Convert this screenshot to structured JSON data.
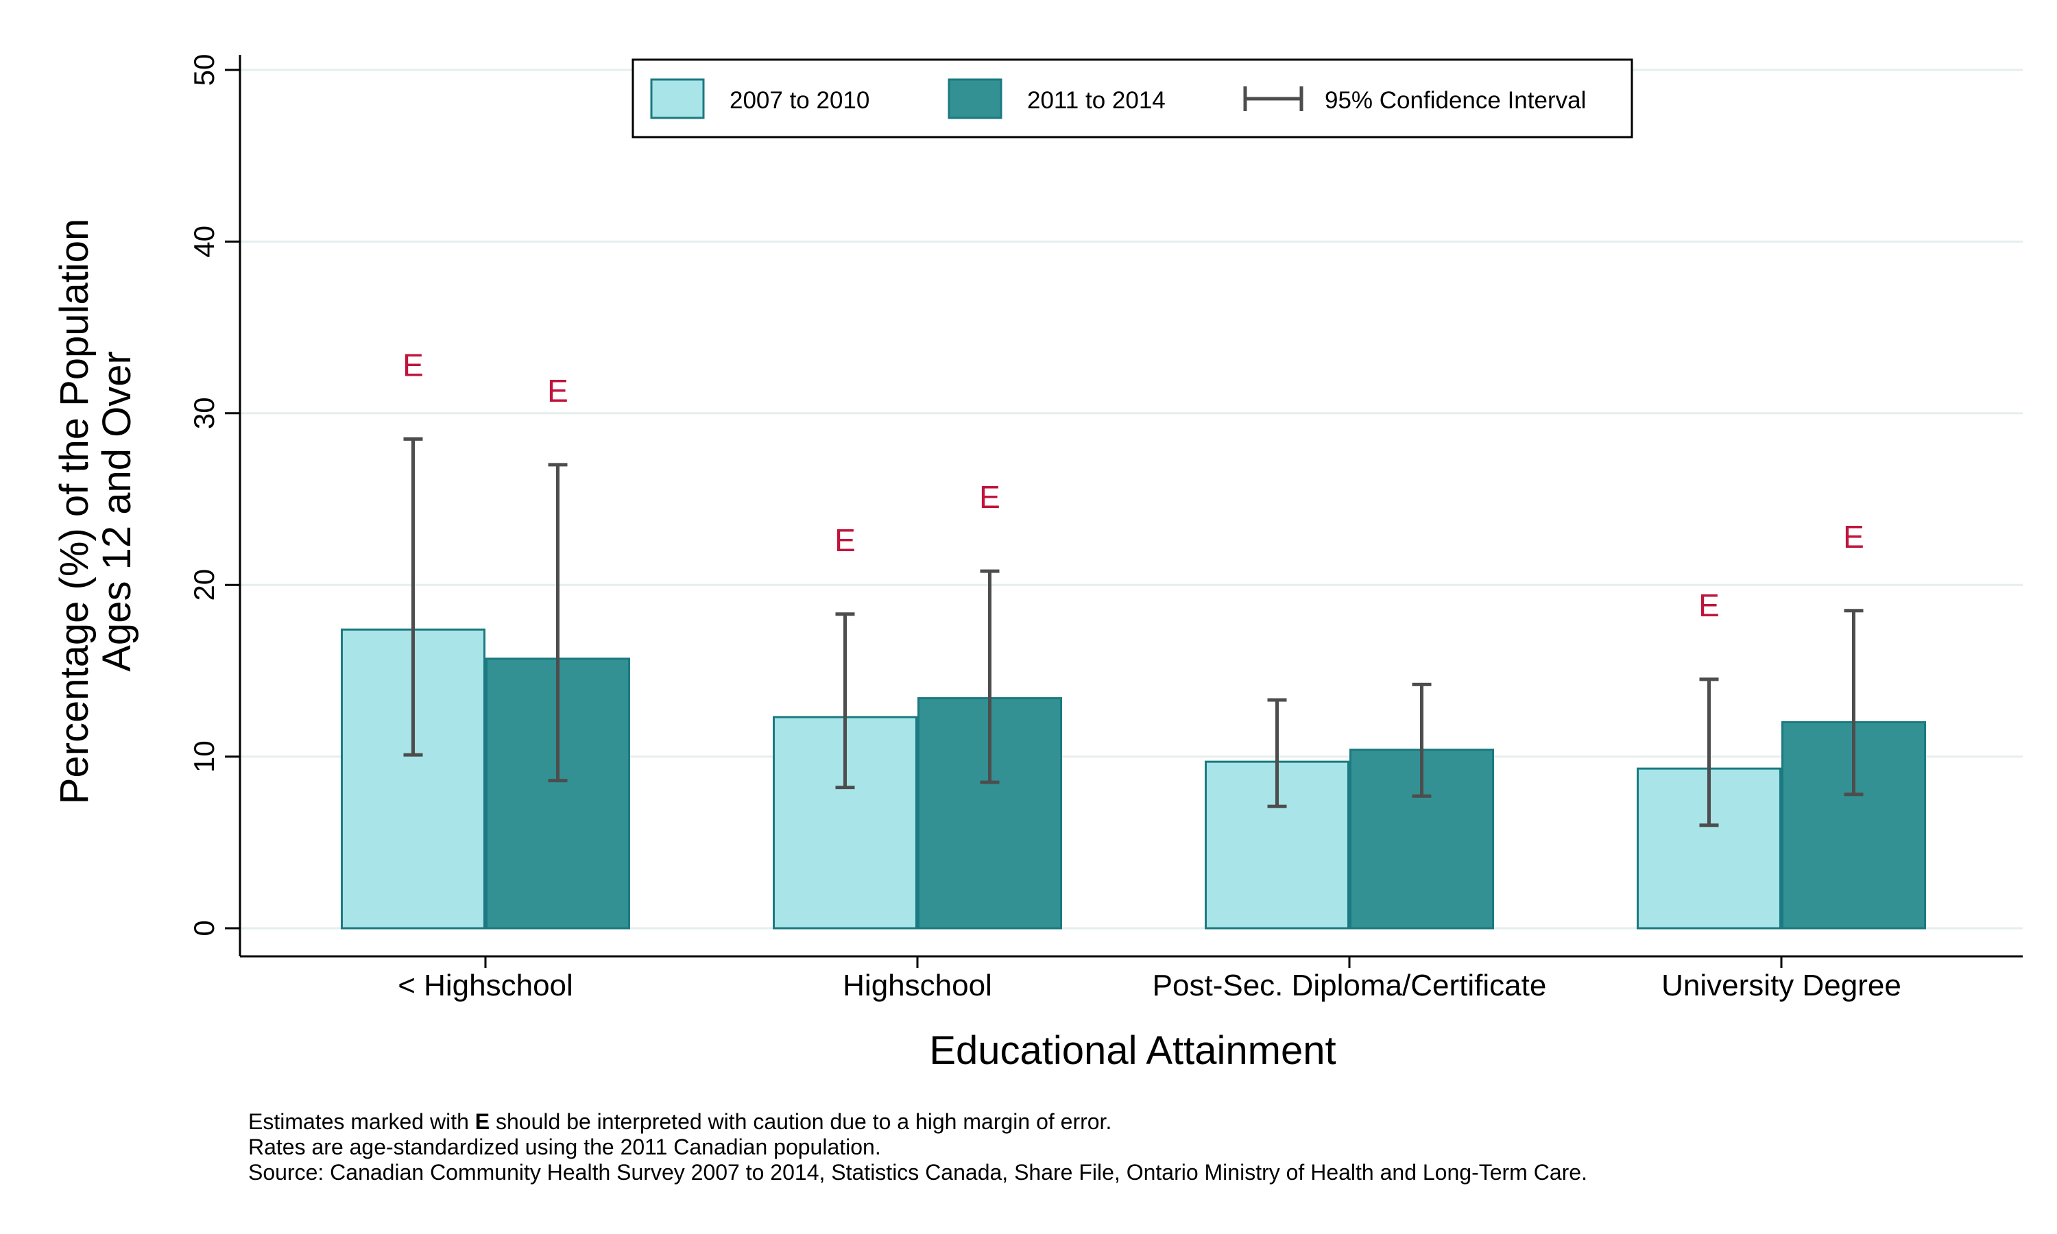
{
  "chart_data": {
    "type": "bar",
    "title": "",
    "xlabel": "Educational Attainment",
    "ylabel_lines": [
      "Percentage (%) of the Population",
      "Ages 12 and Over"
    ],
    "ylim": [
      0,
      50
    ],
    "yticks": [
      0,
      10,
      20,
      30,
      40,
      50
    ],
    "grid": true,
    "categories": [
      "< Highschool",
      "Highschool",
      "Post-Sec. Diploma/Certificate",
      "University Degree"
    ],
    "series": [
      {
        "name": "2007 to 2010",
        "color": "#a8e4e8",
        "values": [
          17.4,
          12.3,
          9.7,
          9.3
        ],
        "ci_low": [
          10.1,
          8.2,
          7.1,
          6.0
        ],
        "ci_high": [
          28.5,
          18.3,
          13.3,
          14.5
        ],
        "flag": [
          "E",
          "E",
          "",
          "E"
        ]
      },
      {
        "name": "2011 to 2014",
        "color": "#339194",
        "values": [
          15.7,
          13.4,
          10.4,
          12.0
        ],
        "ci_low": [
          8.6,
          8.5,
          7.7,
          7.8
        ],
        "ci_high": [
          27.0,
          20.8,
          14.2,
          18.5
        ],
        "flag": [
          "E",
          "E",
          "",
          "E"
        ]
      }
    ],
    "legend": {
      "placement": "top-center",
      "entries": [
        "2007 to 2010",
        "2011 to 2014",
        "95% Confidence Interval"
      ]
    },
    "colors": {
      "bar_border": "#1a7a80",
      "error_bar": "#4d4d4d",
      "flag": "#c0143c",
      "grid": "#e6eeee"
    }
  },
  "footnotes": {
    "line1_before": "Estimates marked with ",
    "line1_bold": "E",
    "line1_after": " should be interpreted with caution due to a high margin of error.",
    "line2": "Rates are age-standardized using the 2011 Canadian population.",
    "line3": "Source: Canadian Community Health Survey 2007 to 2014, Statistics Canada, Share File, Ontario Ministry of Health and Long-Term Care."
  }
}
